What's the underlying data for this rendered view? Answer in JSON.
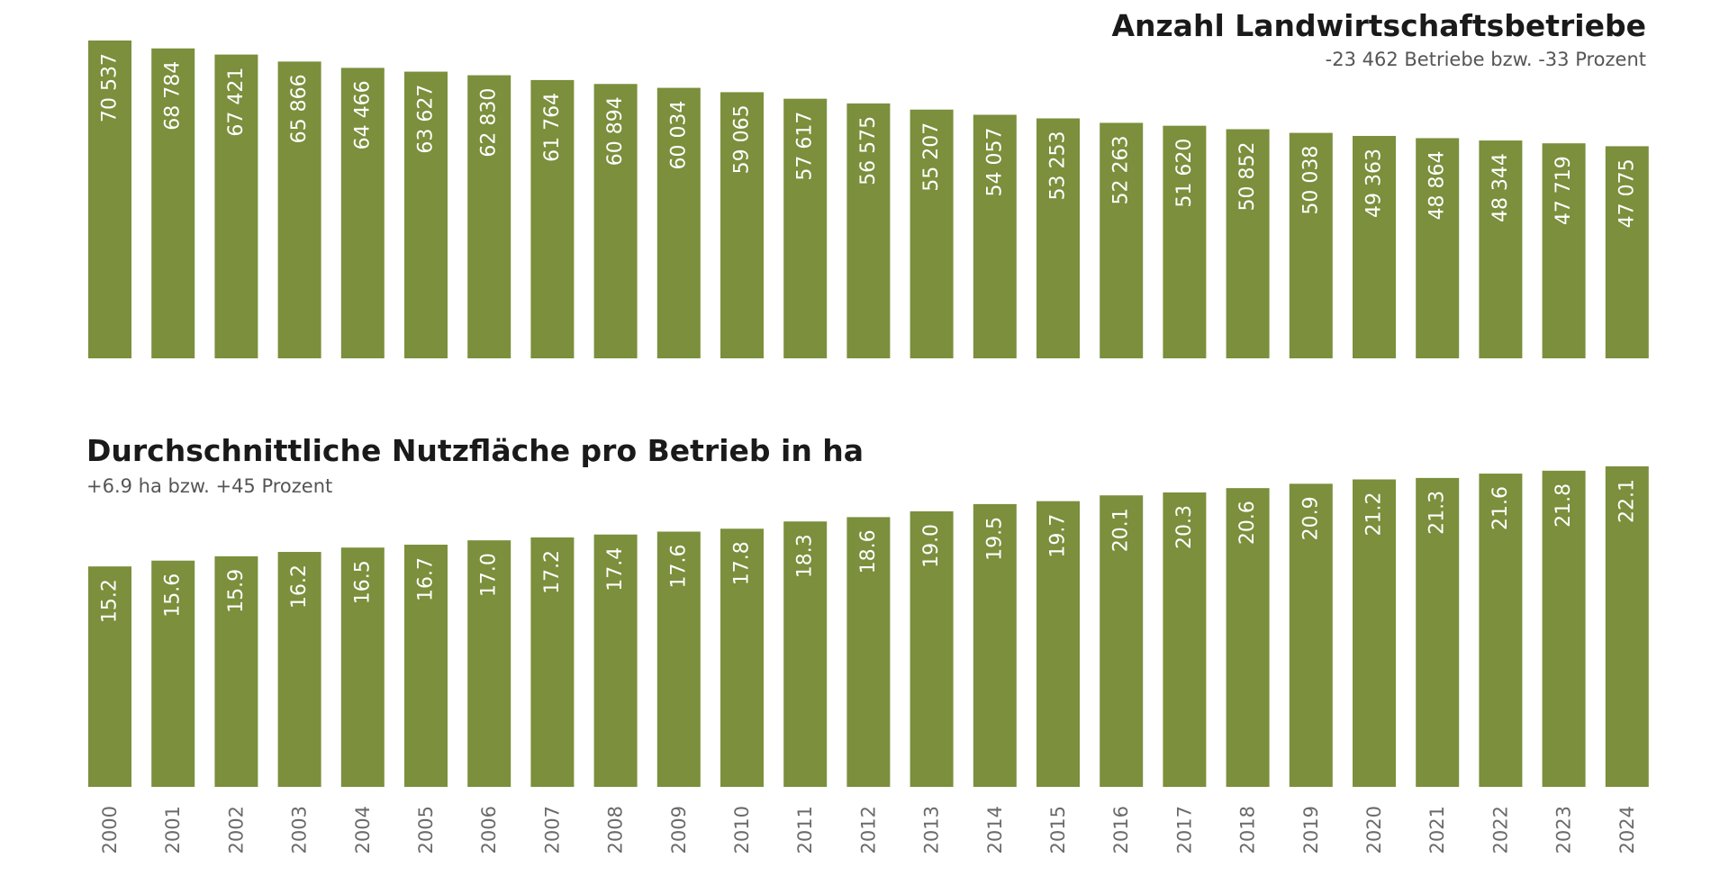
{
  "colors": {
    "bar": "#7b8f3c",
    "background": "#ffffff"
  },
  "chart_data": [
    {
      "type": "bar",
      "title": "Anzahl Landwirtschaftsbetriebe",
      "subtitle": "-23 462 Betriebe bzw. -33 Prozent",
      "categories": [
        "2000",
        "2001",
        "2002",
        "2003",
        "2004",
        "2005",
        "2006",
        "2007",
        "2008",
        "2009",
        "2010",
        "2011",
        "2012",
        "2013",
        "2014",
        "2015",
        "2016",
        "2017",
        "2018",
        "2019",
        "2020",
        "2021",
        "2022",
        "2023",
        "2024"
      ],
      "values": [
        70537,
        68784,
        67421,
        65866,
        64466,
        63627,
        62830,
        61764,
        60894,
        60034,
        59065,
        57617,
        56575,
        55207,
        54057,
        53253,
        52263,
        51620,
        50852,
        50038,
        49363,
        48864,
        48344,
        47719,
        47075
      ],
      "value_labels": [
        "70 537",
        "68 784",
        "67 421",
        "65 866",
        "64 466",
        "63 627",
        "62 830",
        "61 764",
        "60 894",
        "60 034",
        "59 065",
        "57 617",
        "56 575",
        "55 207",
        "54 057",
        "53 253",
        "52 263",
        "51 620",
        "50 852",
        "50 038",
        "49 363",
        "48 864",
        "48 344",
        "47 719",
        "47 075"
      ],
      "ylim": [
        0,
        70537
      ],
      "grid": false,
      "title_position": "top-right"
    },
    {
      "type": "bar",
      "title": "Durchschnittliche Nutzfläche pro Betrieb in ha",
      "subtitle": "+6.9 ha bzw. +45 Prozent",
      "categories": [
        "2000",
        "2001",
        "2002",
        "2003",
        "2004",
        "2005",
        "2006",
        "2007",
        "2008",
        "2009",
        "2010",
        "2011",
        "2012",
        "2013",
        "2014",
        "2015",
        "2016",
        "2017",
        "2018",
        "2019",
        "2020",
        "2021",
        "2022",
        "2023",
        "2024"
      ],
      "values": [
        15.2,
        15.6,
        15.9,
        16.2,
        16.5,
        16.7,
        17.0,
        17.2,
        17.4,
        17.6,
        17.8,
        18.3,
        18.6,
        19.0,
        19.5,
        19.7,
        20.1,
        20.3,
        20.6,
        20.9,
        21.2,
        21.3,
        21.6,
        21.8,
        22.1
      ],
      "value_labels": [
        "15.2",
        "15.6",
        "15.9",
        "16.2",
        "16.5",
        "16.7",
        "17.0",
        "17.2",
        "17.4",
        "17.6",
        "17.8",
        "18.3",
        "18.6",
        "19.0",
        "19.5",
        "19.7",
        "20.1",
        "20.3",
        "20.6",
        "20.9",
        "21.2",
        "21.3",
        "21.6",
        "21.8",
        "22.1"
      ],
      "ylim": [
        0,
        22.1
      ],
      "grid": false,
      "title_position": "top-left"
    }
  ]
}
